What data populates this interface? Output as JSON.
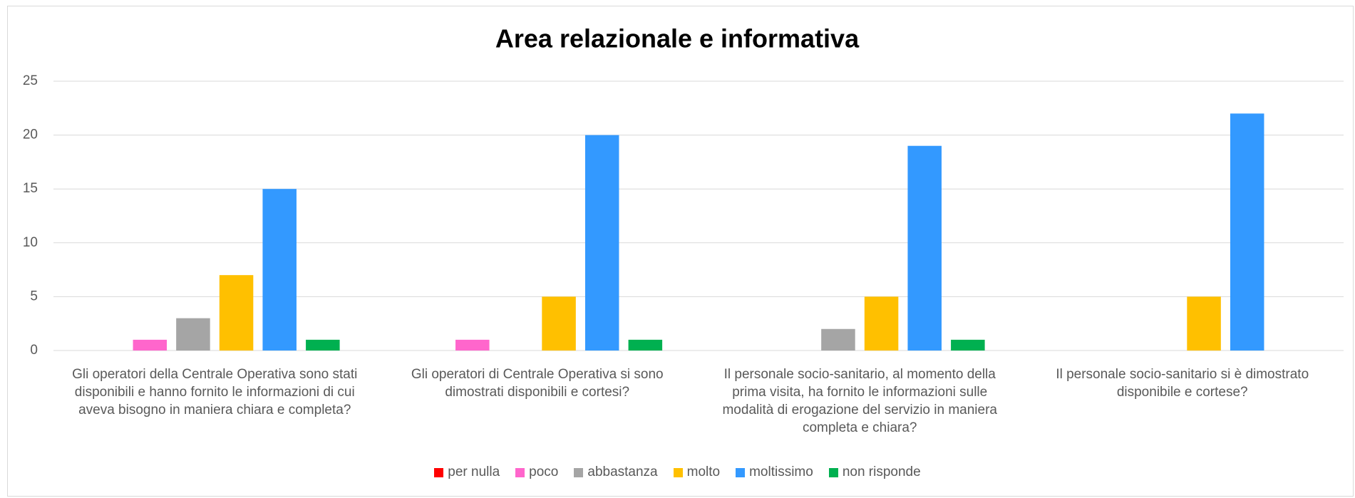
{
  "chart_data": {
    "type": "bar",
    "title": "Area relazionale e informativa",
    "categories": [
      "Gli operatori della Centrale Operativa sono stati disponibili e hanno fornito le informazioni di cui aveva bisogno in maniera chiara e completa?",
      "Gli operatori di Centrale Operativa si sono dimostrati disponibili e cortesi?",
      "Il personale socio-sanitario, al momento della prima visita, ha fornito le informazioni sulle modalità di erogazione del servizio in maniera completa e chiara?",
      "Il personale socio-sanitario si è dimostrato disponibile e cortese?"
    ],
    "series": [
      {
        "name": "per nulla",
        "color": "#ff0000",
        "values": [
          0,
          0,
          0,
          0
        ]
      },
      {
        "name": "poco",
        "color": "#ff66cc",
        "values": [
          1,
          1,
          0,
          0
        ]
      },
      {
        "name": "abbastanza",
        "color": "#a5a5a5",
        "values": [
          3,
          0,
          2,
          0
        ]
      },
      {
        "name": "molto",
        "color": "#ffc000",
        "values": [
          7,
          5,
          5,
          5
        ]
      },
      {
        "name": "moltissimo",
        "color": "#3399ff",
        "values": [
          15,
          20,
          19,
          22
        ]
      },
      {
        "name": "non risponde",
        "color": "#00b050",
        "values": [
          1,
          1,
          1,
          0
        ]
      }
    ],
    "ylim": [
      0,
      25
    ],
    "yticks": [
      0,
      5,
      10,
      15,
      20,
      25
    ],
    "grid": true,
    "legend": "bottom"
  }
}
